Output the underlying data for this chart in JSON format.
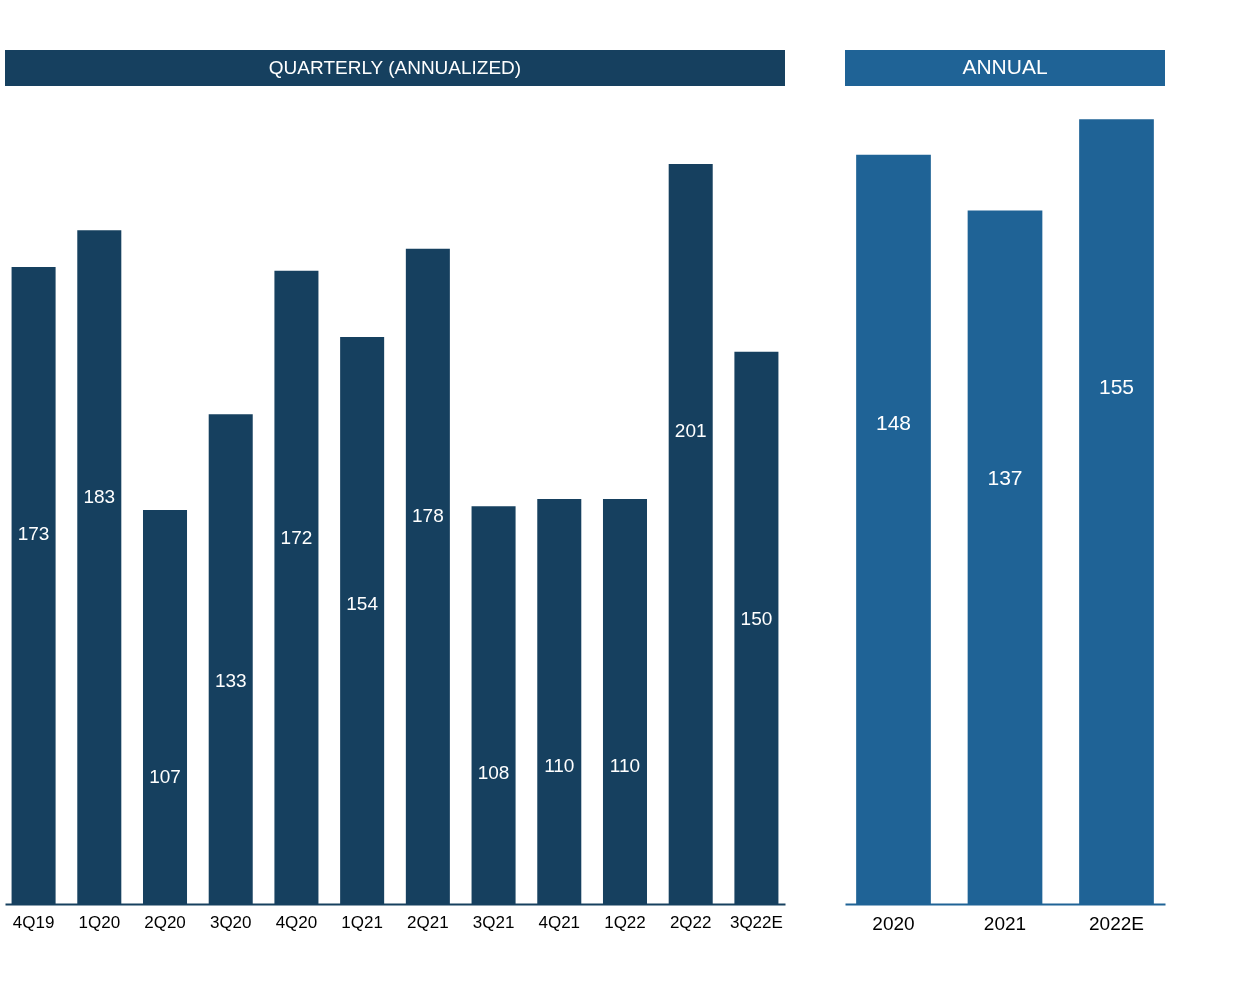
{
  "chart_data": [
    {
      "type": "bar",
      "title": "QUARTERLY (ANNUALIZED)",
      "categories": [
        "4Q19",
        "1Q20",
        "2Q20",
        "3Q20",
        "4Q20",
        "1Q21",
        "2Q21",
        "3Q21",
        "4Q21",
        "1Q22",
        "2Q22",
        "3Q22E"
      ],
      "series": [
        {
          "color": "#16405f",
          "values": [
            173,
            183,
            107,
            133,
            172,
            154,
            178,
            108,
            110,
            110,
            201,
            150
          ]
        }
      ],
      "data_labels": true,
      "tick_labels": "x",
      "grid": false
    },
    {
      "type": "bar",
      "title": "ANNUAL",
      "categories": [
        "2020",
        "2021",
        "2022E"
      ],
      "series": [
        {
          "color": "#1f6396",
          "values": [
            148,
            137,
            155
          ]
        }
      ],
      "data_labels": true,
      "tick_labels": "x",
      "grid": false
    }
  ]
}
